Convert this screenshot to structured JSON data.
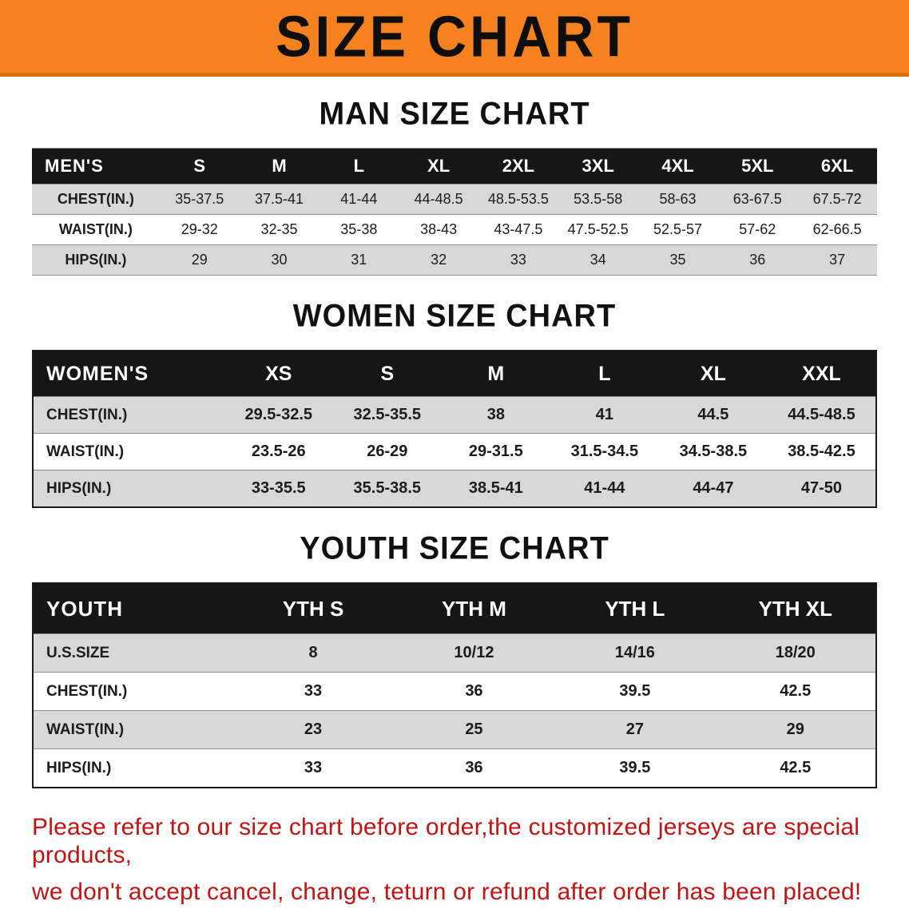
{
  "banner": {
    "title": "SIZE CHART",
    "bg_color": "#f5821f"
  },
  "sections": [
    {
      "heading": "MAN SIZE CHART",
      "table": {
        "name": "mens",
        "header": [
          "MEN'S",
          "S",
          "M",
          "L",
          "XL",
          "2XL",
          "3XL",
          "4XL",
          "5XL",
          "6XL"
        ],
        "rows": [
          [
            "CHEST(IN.)",
            "35-37.5",
            "37.5-41",
            "41-44",
            "44-48.5",
            "48.5-53.5",
            "53.5-58",
            "58-63",
            "63-67.5",
            "67.5-72"
          ],
          [
            "WAIST(IN.)",
            "29-32",
            "32-35",
            "35-38",
            "38-43",
            "43-47.5",
            "47.5-52.5",
            "52.5-57",
            "57-62",
            "62-66.5"
          ],
          [
            "HIPS(IN.)",
            "29",
            "30",
            "31",
            "32",
            "33",
            "34",
            "35",
            "36",
            "37"
          ]
        ]
      }
    },
    {
      "heading": "WOMEN SIZE CHART",
      "table": {
        "name": "womens",
        "header": [
          "WOMEN'S",
          "XS",
          "S",
          "M",
          "L",
          "XL",
          "XXL"
        ],
        "rows": [
          [
            "CHEST(IN.)",
            "29.5-32.5",
            "32.5-35.5",
            "38",
            "41",
            "44.5",
            "44.5-48.5"
          ],
          [
            "WAIST(IN.)",
            "23.5-26",
            "26-29",
            "29-31.5",
            "31.5-34.5",
            "34.5-38.5",
            "38.5-42.5"
          ],
          [
            "HIPS(IN.)",
            "33-35.5",
            "35.5-38.5",
            "38.5-41",
            "41-44",
            "44-47",
            "47-50"
          ]
        ]
      }
    },
    {
      "heading": "YOUTH SIZE CHART",
      "table": {
        "name": "youth",
        "header": [
          "YOUTH",
          "YTH S",
          "YTH M",
          "YTH L",
          "YTH XL"
        ],
        "rows": [
          [
            "U.S.SIZE",
            "8",
            "10/12",
            "14/16",
            "18/20"
          ],
          [
            "CHEST(IN.)",
            "33",
            "36",
            "39.5",
            "42.5"
          ],
          [
            "WAIST(IN.)",
            "23",
            "25",
            "27",
            "29"
          ],
          [
            "HIPS(IN.)",
            "33",
            "36",
            "39.5",
            "42.5"
          ]
        ]
      }
    }
  ],
  "disclaimer": {
    "lines": [
      "Please refer to our size chart before order,the customized jerseys are special products,",
      "we don't accept cancel, change, teturn or refund after order has been placed!"
    ],
    "color": "#c31414"
  }
}
